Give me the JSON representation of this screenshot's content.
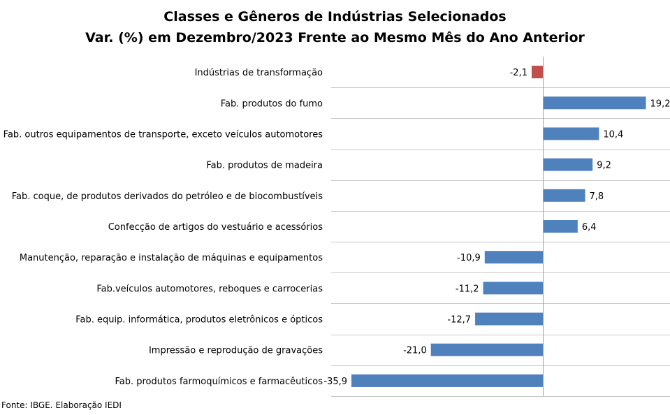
{
  "chart_data": {
    "type": "bar",
    "orientation": "horizontal",
    "title": "Classes e Gêneros de Indústrias Selecionados",
    "subtitle": "Var. (%) em Dezembro/2023 Frente ao Mesmo Mês do Ano Anterior",
    "categories": [
      "Indústrias de transformação",
      "Fab. produtos do fumo",
      "Fab. outros equipamentos de transporte, exceto veículos automotores",
      "Fab. produtos de madeira",
      "Fab. coque, de produtos derivados do petróleo e de biocombustíveis",
      "Confecção de artigos do vestuário e acessórios",
      "Manutenção, reparação e instalação de máquinas e equipamentos",
      "Fab.veículos automotores, reboques e carrocerias",
      "Fab. equip. informática, produtos eletrônicos e ópticos",
      "Impressão e reprodução de gravações",
      "Fab. produtos farmoquímicos e farmacêuticos"
    ],
    "values": [
      -2.1,
      19.2,
      10.4,
      9.2,
      7.8,
      6.4,
      -10.9,
      -11.2,
      -12.7,
      -21.0,
      -35.9
    ],
    "value_labels": [
      "-2,1",
      "19,2",
      "10,4",
      "9,2",
      "7,8",
      "6,4",
      "-10,9",
      "-11,2",
      "-12,7",
      "-21,0",
      "-35,9"
    ],
    "bar_colors": [
      "#C0504D",
      "#4F81BD",
      "#4F81BD",
      "#4F81BD",
      "#4F81BD",
      "#4F81BD",
      "#4F81BD",
      "#4F81BD",
      "#4F81BD",
      "#4F81BD",
      "#4F81BD"
    ],
    "xlim": [
      -40,
      24
    ],
    "grid": "horizontal separators",
    "legend": "none"
  },
  "source": "Fonte: IBGE. Elaboração IEDI"
}
